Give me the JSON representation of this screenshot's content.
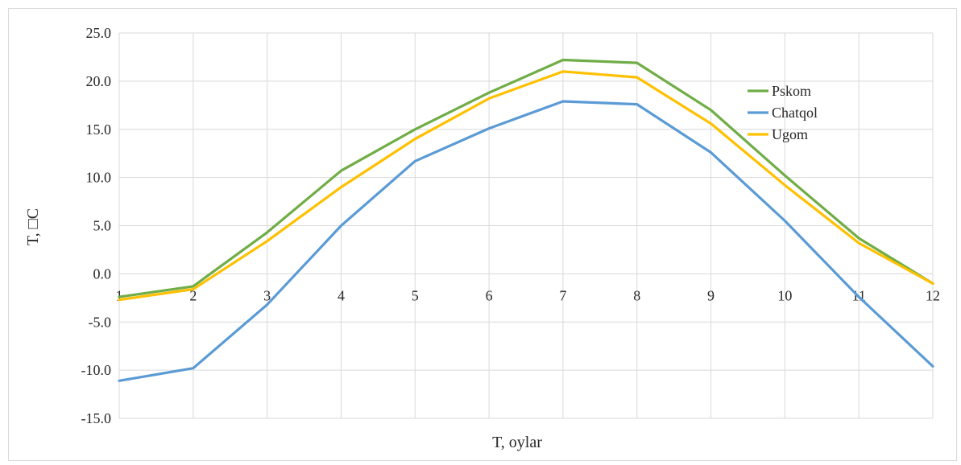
{
  "chart_data": {
    "type": "line",
    "title": "",
    "xlabel": "T, oylar",
    "ylabel": "T, □C",
    "categories": [
      "1",
      "2",
      "3",
      "4",
      "5",
      "6",
      "7",
      "8",
      "9",
      "10",
      "11",
      "12"
    ],
    "ylim": [
      -15,
      25
    ],
    "yticks": [
      "-15.0",
      "-10.0",
      "-5.0",
      "0.0",
      "5.0",
      "10.0",
      "15.0",
      "20.0",
      "25.0"
    ],
    "grid": true,
    "legend_position": "top-right",
    "series": [
      {
        "name": "Pskom",
        "color": "#70ad47",
        "values": [
          -2.4,
          -1.3,
          4.3,
          10.7,
          15.0,
          18.8,
          22.2,
          21.9,
          17.0,
          10.2,
          3.7,
          -1.0
        ]
      },
      {
        "name": "Chatqol",
        "color": "#5b9bd5",
        "values": [
          -11.1,
          -9.8,
          -3.2,
          5.0,
          11.7,
          15.1,
          17.9,
          17.6,
          12.6,
          5.5,
          -2.4,
          -9.6
        ]
      },
      {
        "name": "Ugom",
        "color": "#ffc000",
        "values": [
          -2.7,
          -1.6,
          3.4,
          9.0,
          14.0,
          18.2,
          21.0,
          20.4,
          15.6,
          9.2,
          3.2,
          -1.0
        ]
      }
    ]
  }
}
